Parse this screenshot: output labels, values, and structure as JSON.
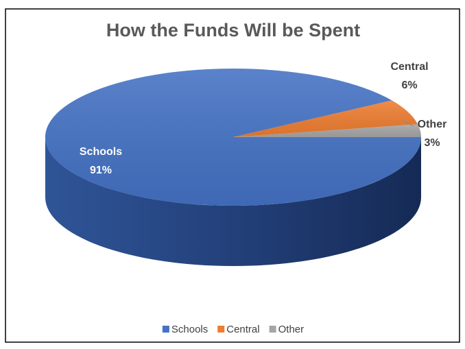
{
  "chart_data": {
    "type": "pie",
    "title": "How the Funds Will be Spent",
    "categories": [
      "Schools",
      "Central",
      "Other"
    ],
    "values": [
      91,
      6,
      3
    ],
    "value_labels": [
      "91%",
      "6%",
      "3%"
    ],
    "colors": [
      "#4472c4",
      "#ed7d31",
      "#a5a5a5"
    ],
    "legend": "bottom"
  }
}
